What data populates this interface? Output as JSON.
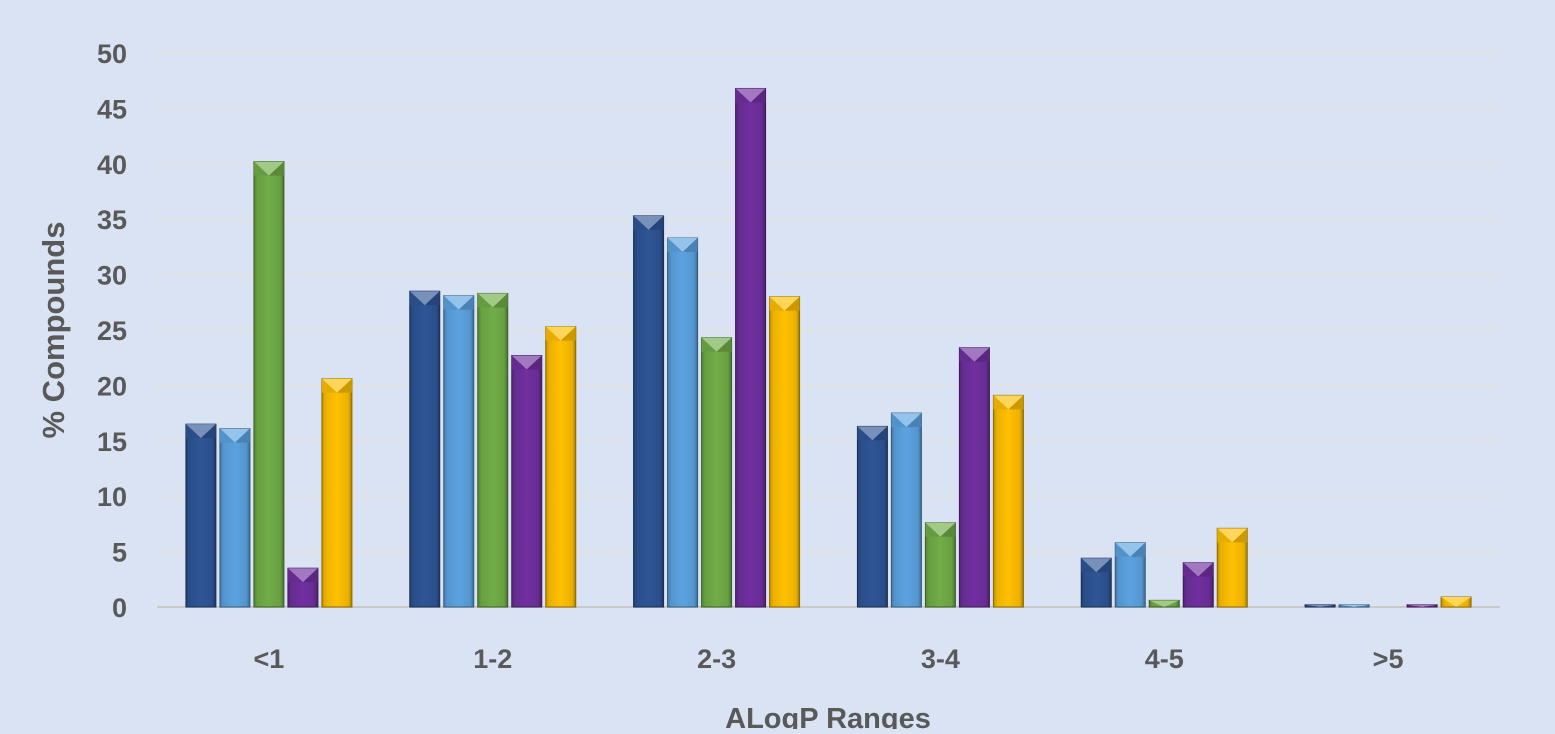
{
  "chart_data": {
    "type": "bar",
    "title": "",
    "xlabel": "ALogP Ranges",
    "ylabel": "% Compounds",
    "ylim": [
      0,
      50
    ],
    "yticks": [
      "0",
      "5",
      "10",
      "15",
      "20",
      "25",
      "30",
      "35",
      "40",
      "45",
      "50"
    ],
    "grid": true,
    "legend": "none",
    "categories": [
      "<1",
      "1-2",
      "2-3",
      "3-4",
      "4-5",
      ">5"
    ],
    "series": [
      {
        "color": "#2f5597",
        "values": [
          16.5,
          28.5,
          35.3,
          16.3,
          4.4,
          0.2
        ]
      },
      {
        "color": "#5ba3e0",
        "values": [
          16.1,
          28.1,
          33.3,
          17.5,
          5.8,
          0.2
        ]
      },
      {
        "color": "#70ad47",
        "values": [
          40.2,
          28.3,
          24.3,
          7.6,
          0.6,
          0.0
        ]
      },
      {
        "color": "#7030a0",
        "values": [
          3.5,
          22.7,
          46.8,
          23.4,
          4.0,
          0.2
        ]
      },
      {
        "color": "#ffc000",
        "values": [
          20.6,
          25.3,
          28.0,
          19.1,
          7.1,
          0.9
        ]
      }
    ]
  }
}
